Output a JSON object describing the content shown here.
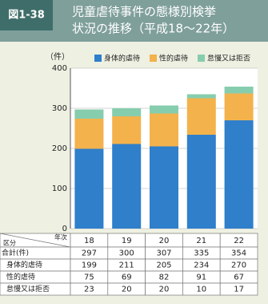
{
  "figure_number": "図1-38",
  "title_lines": [
    "児童虐待事件の態様別検挙",
    "状況の推移（平成18～22年）"
  ],
  "chart_data": {
    "type": "stacked-bar",
    "unit_label": "（件）",
    "categories": [
      "18",
      "19",
      "20",
      "21",
      "22"
    ],
    "series": [
      {
        "name": "身体的虐待",
        "color": "#2f7fcb",
        "values": [
          199,
          211,
          205,
          234,
          270
        ]
      },
      {
        "name": "性的虐待",
        "color": "#f3b24c",
        "values": [
          75,
          69,
          82,
          91,
          67
        ]
      },
      {
        "name": "怠慢又は拒否",
        "color": "#86cdae",
        "values": [
          23,
          20,
          20,
          10,
          17
        ]
      }
    ],
    "ylim": [
      0,
      400
    ],
    "yticks": [
      0,
      100,
      200,
      300,
      400
    ],
    "grid": true,
    "table_corner_labels": [
      "年次",
      "区分"
    ],
    "total_label": "合計(件)",
    "totals": [
      297,
      300,
      307,
      335,
      354
    ]
  }
}
